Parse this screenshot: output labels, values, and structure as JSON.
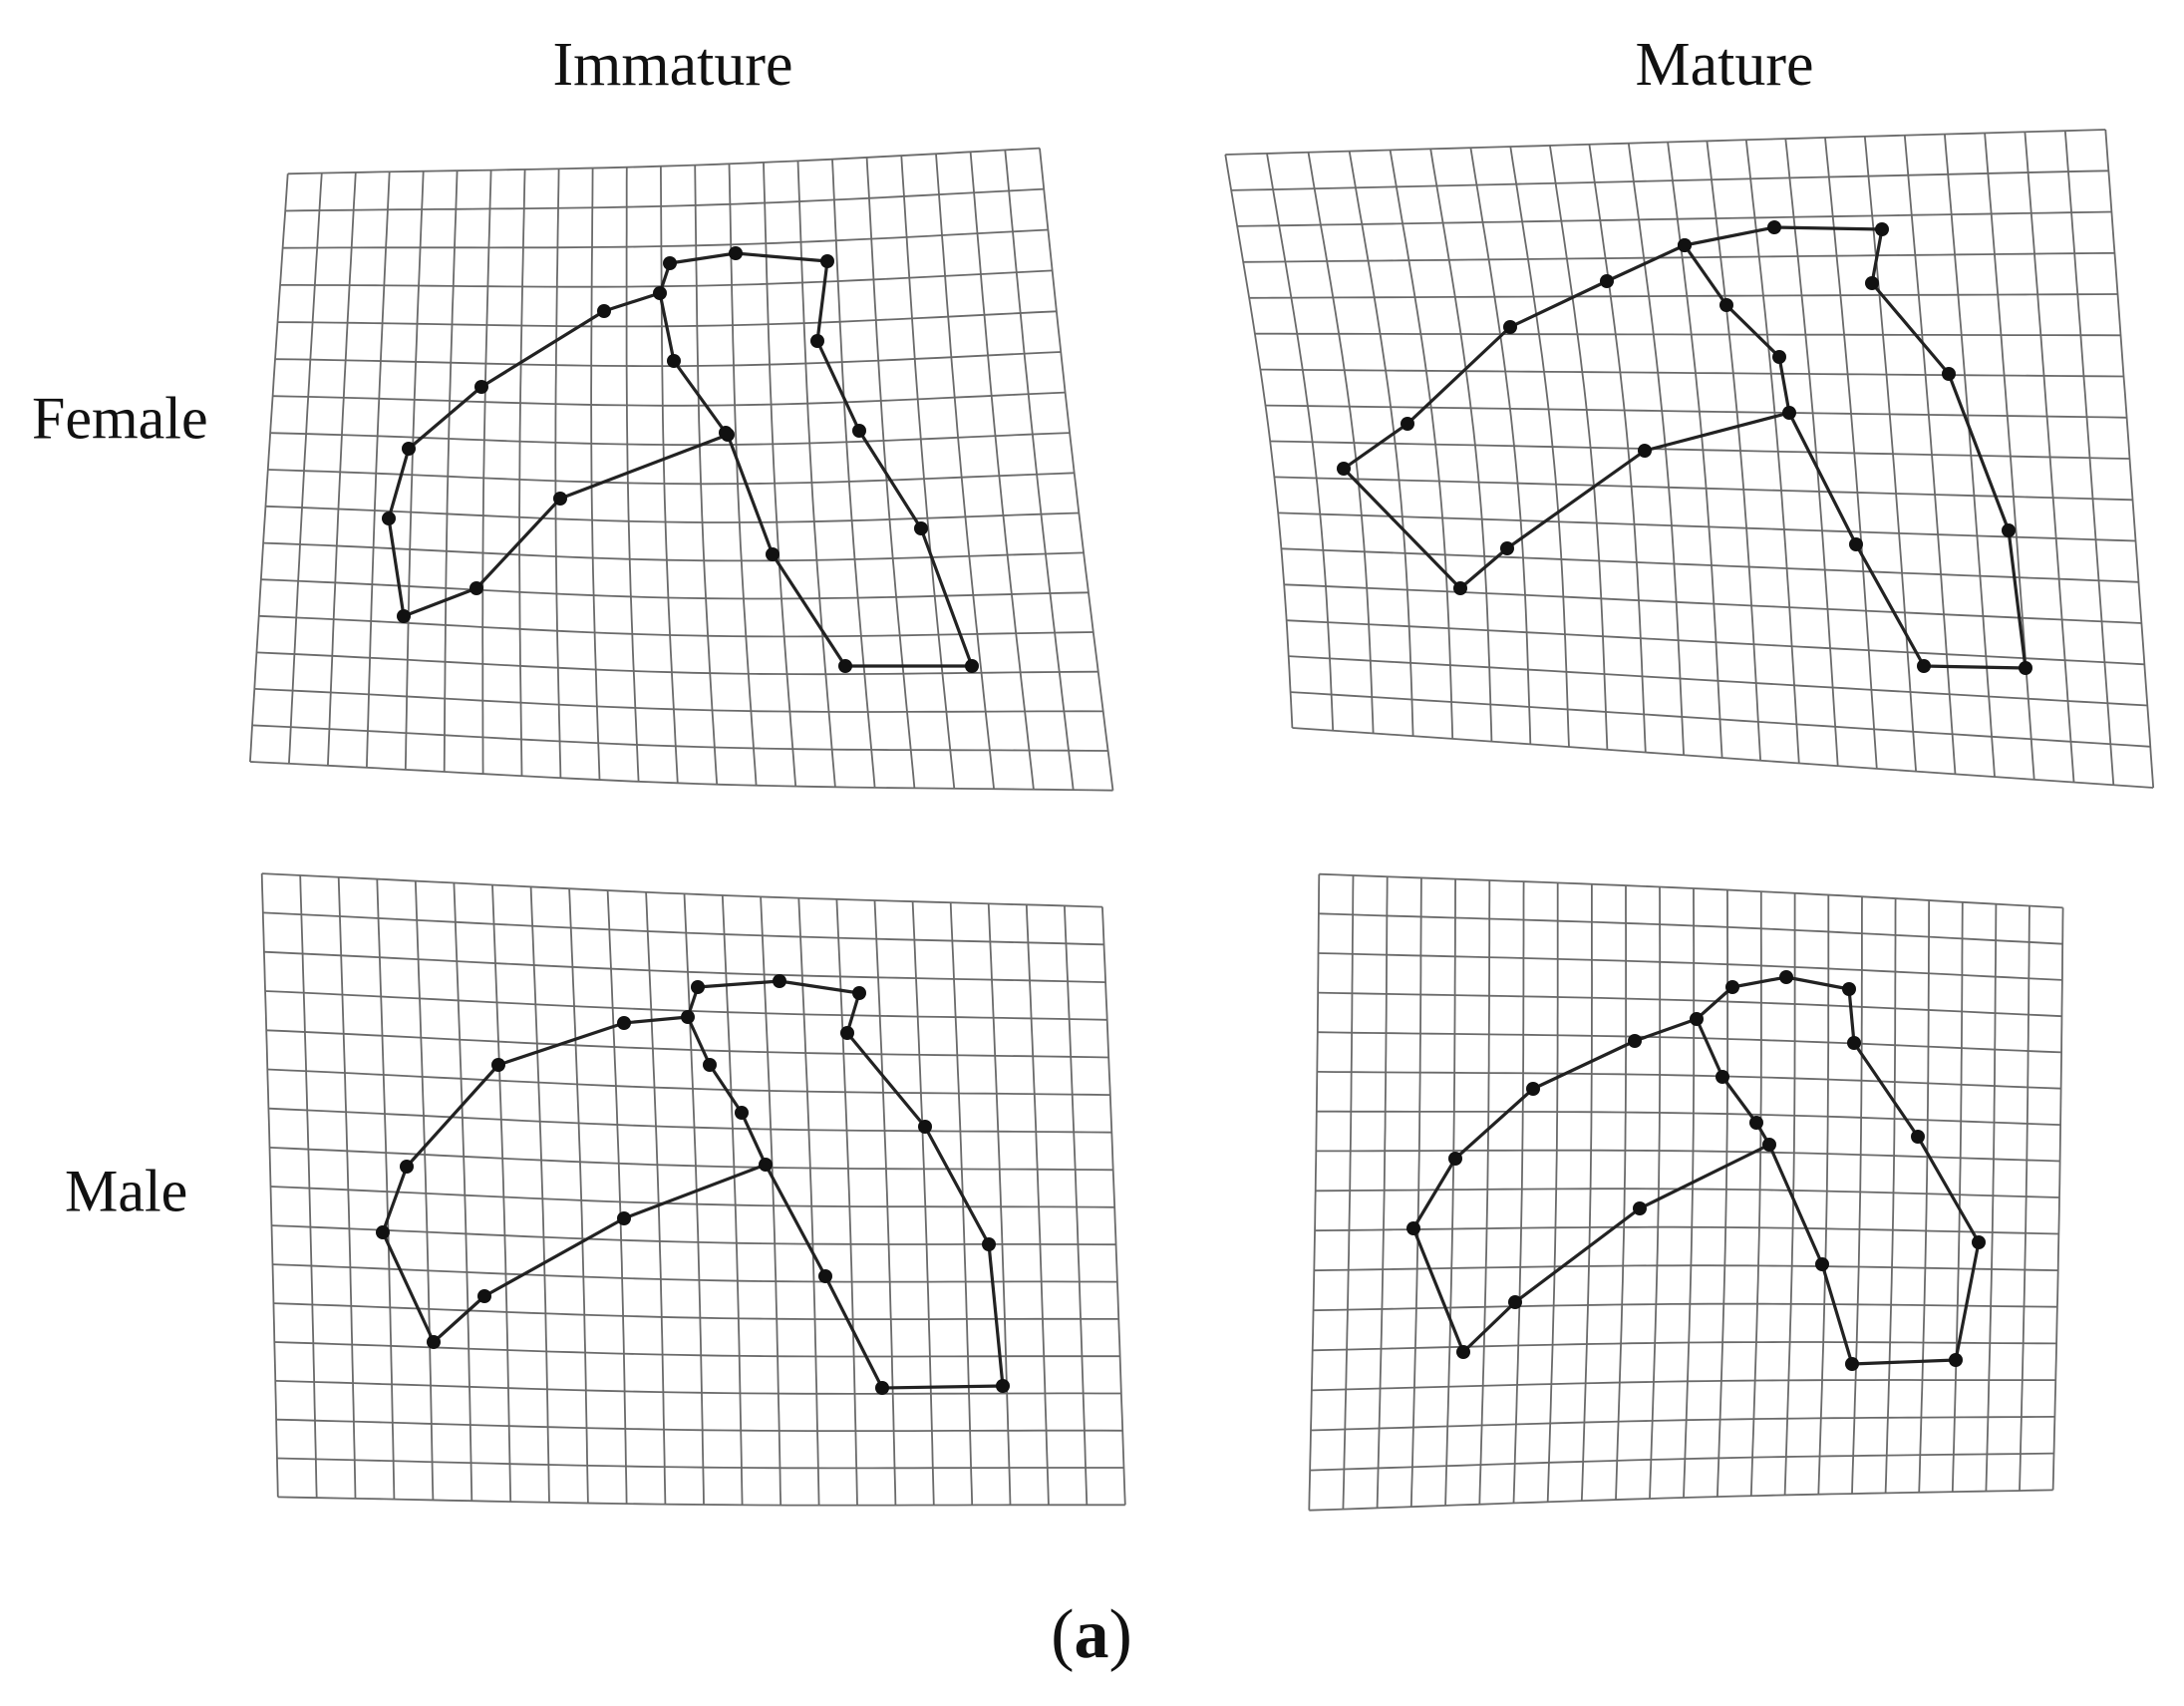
{
  "columns": [
    "Immature",
    "Mature"
  ],
  "rows": [
    "Female",
    "Male"
  ],
  "figure_label_open": "(",
  "figure_label_letter": "a",
  "figure_label_close": ")",
  "colors": {
    "grid": "#6a6a6a",
    "outline": "#222222",
    "landmark": "#111111"
  },
  "panels": [
    {
      "name": "immature-female"
    },
    {
      "name": "mature-female"
    },
    {
      "name": "immature-male"
    },
    {
      "name": "mature-male"
    }
  ]
}
